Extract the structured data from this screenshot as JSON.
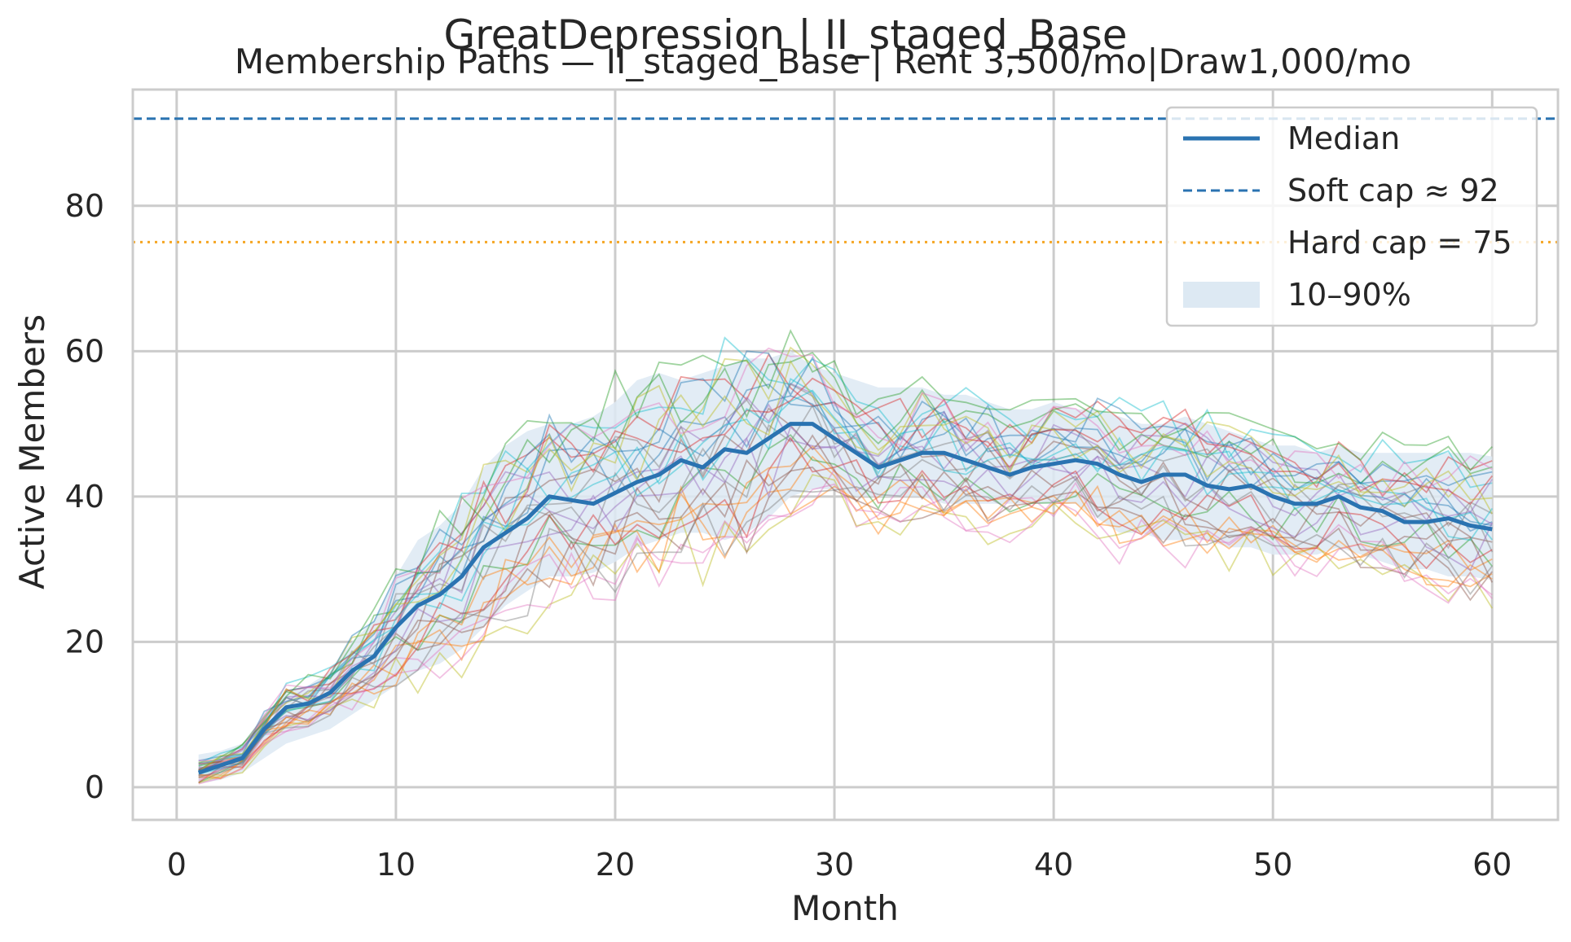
{
  "chart_data": {
    "type": "line",
    "title": "GreatDepression | II_staged_Base",
    "subtitle": "Membership Paths — II_staged_Base | Rent 3,500/mo|Draw1,000/mo",
    "xlabel": "Month",
    "ylabel": "Active Members",
    "xlim": [
      -2,
      63
    ],
    "ylim": [
      -4.5,
      96
    ],
    "xticks": [
      0,
      10,
      20,
      30,
      40,
      50,
      60
    ],
    "yticks": [
      0,
      20,
      40,
      60,
      80
    ],
    "grid": true,
    "legend_position": "top-right",
    "legend": [
      {
        "label": "Median",
        "style": "line",
        "color": "#2a73b1"
      },
      {
        "label": "Soft cap ≈ 92",
        "style": "dashed",
        "color": "#2a73b1"
      },
      {
        "label": "Hard cap = 75",
        "style": "dotted",
        "color": "#f5a623"
      },
      {
        "label": "10–90%",
        "style": "band",
        "color": "#dde9f3"
      }
    ],
    "soft_cap": 92,
    "hard_cap": 75,
    "median": {
      "x": [
        1,
        2,
        3,
        4,
        5,
        6,
        7,
        8,
        9,
        10,
        11,
        12,
        13,
        14,
        15,
        16,
        17,
        18,
        19,
        20,
        21,
        22,
        23,
        24,
        25,
        26,
        27,
        28,
        29,
        30,
        31,
        32,
        33,
        34,
        35,
        36,
        37,
        38,
        39,
        40,
        41,
        42,
        43,
        44,
        45,
        46,
        47,
        48,
        49,
        50,
        51,
        52,
        53,
        54,
        55,
        56,
        57,
        58,
        59,
        60
      ],
      "y": [
        2,
        3,
        4,
        8,
        11,
        11.5,
        13,
        16,
        18,
        22,
        25,
        26.5,
        29,
        33,
        35,
        37,
        40,
        39.5,
        39,
        40.5,
        42,
        43,
        45,
        44,
        46.5,
        46,
        48,
        50,
        50,
        48,
        46,
        44,
        45,
        46,
        46,
        45,
        44,
        43,
        44,
        44.5,
        45,
        44.5,
        43,
        42,
        43,
        43,
        41.5,
        41,
        41.5,
        40,
        39,
        39,
        40,
        38.5,
        38,
        36.5,
        36.5,
        37,
        36,
        35.5
      ]
    },
    "band_10_90": {
      "x": [
        1,
        2,
        3,
        4,
        5,
        6,
        7,
        8,
        9,
        10,
        11,
        12,
        13,
        14,
        15,
        16,
        17,
        18,
        19,
        20,
        21,
        22,
        23,
        24,
        25,
        26,
        27,
        28,
        29,
        30,
        31,
        32,
        33,
        34,
        35,
        36,
        37,
        38,
        39,
        40,
        41,
        42,
        43,
        44,
        45,
        46,
        47,
        48,
        49,
        50,
        51,
        52,
        53,
        54,
        55,
        56,
        57,
        58,
        59,
        60
      ],
      "low": [
        0.5,
        1,
        2,
        4,
        6,
        7,
        8,
        10,
        12,
        14,
        16,
        17,
        19,
        22,
        25,
        27,
        29,
        29,
        29.5,
        31,
        33,
        34,
        35,
        35,
        34,
        35,
        37,
        40,
        41,
        41,
        40,
        40,
        40,
        40,
        39,
        39,
        39,
        39,
        39,
        39,
        39,
        37,
        35,
        35,
        34,
        34,
        34,
        33,
        33,
        32,
        32,
        32,
        33,
        32,
        31,
        30,
        30,
        29,
        29,
        28.5
      ],
      "high": [
        4.5,
        5,
        6,
        10,
        13,
        14,
        16,
        20,
        23,
        29,
        34,
        36,
        39,
        44,
        47,
        49,
        50,
        50,
        51,
        53,
        56,
        57,
        56,
        57,
        58,
        59,
        59,
        60,
        58,
        57,
        56,
        55,
        55,
        55,
        54,
        54,
        53,
        52,
        52,
        53,
        52,
        52,
        51,
        50,
        50,
        51,
        50,
        49,
        48,
        47,
        47,
        46,
        47,
        46,
        46,
        46,
        46,
        46,
        46,
        45.5
      ]
    }
  }
}
